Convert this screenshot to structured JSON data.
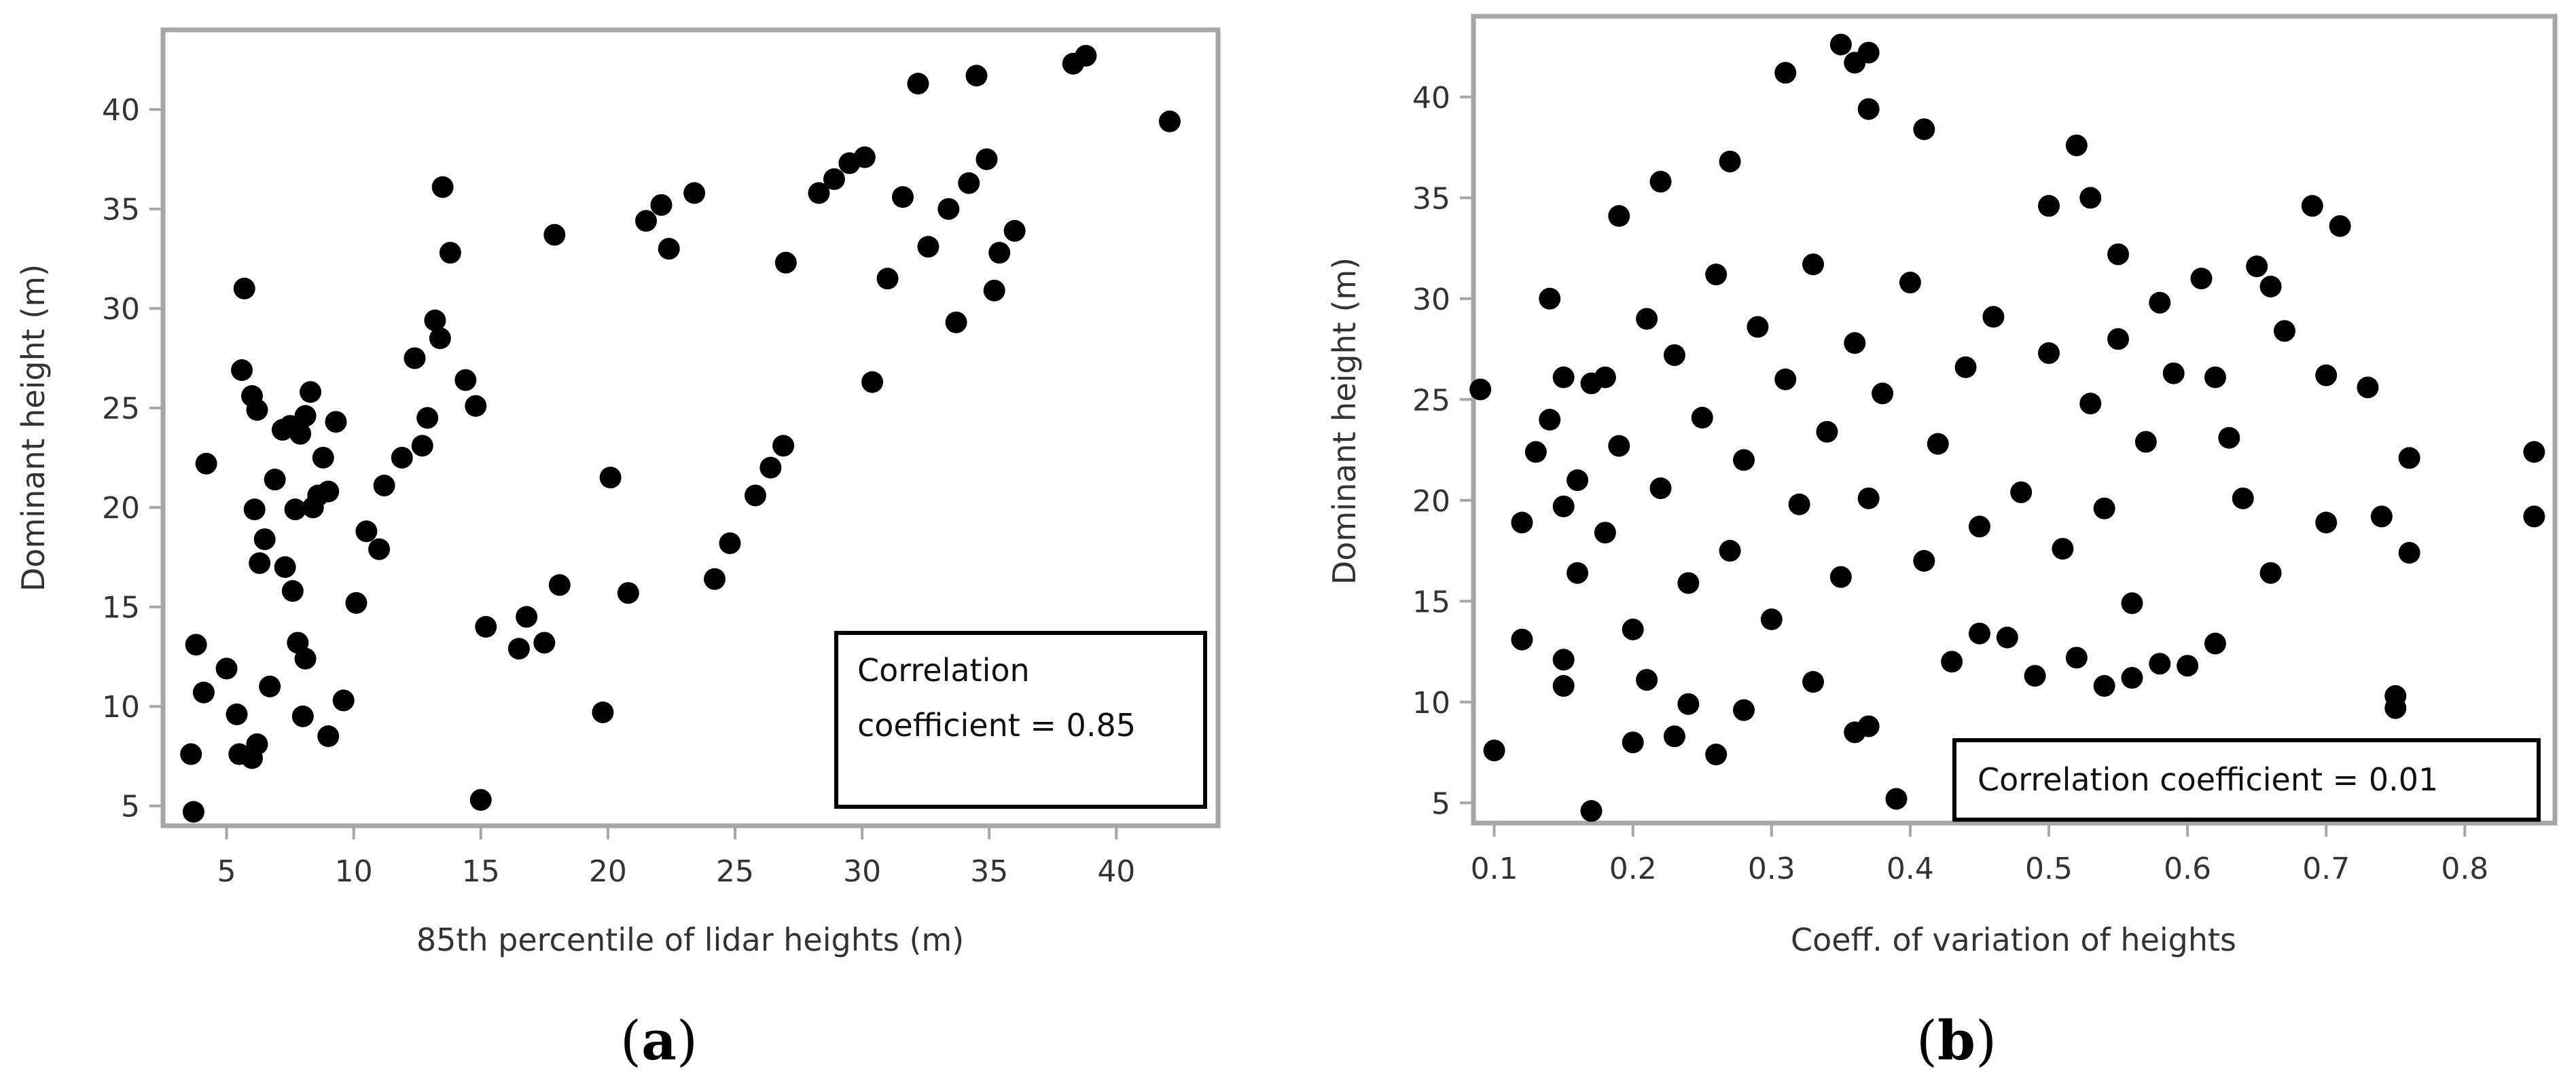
{
  "colors": {
    "frame": "#a6a6a6",
    "point": "#000000",
    "text": "#333333",
    "box_border": "#000000"
  },
  "chart_data": [
    {
      "type": "scatter",
      "panel_label": "(a)",
      "panel_letter": "a",
      "xlabel": "85th percentile of lidar heights (m)",
      "ylabel": "Dominant height (m)",
      "xlim": [
        2.5,
        44
      ],
      "ylim": [
        4,
        44
      ],
      "x_ticks": [
        5,
        10,
        15,
        20,
        25,
        30,
        35,
        40
      ],
      "y_ticks": [
        5,
        10,
        15,
        20,
        25,
        30,
        35,
        40
      ],
      "annotation_lines": [
        "Correlation",
        "coefficient = 0.85"
      ],
      "correlation": 0.85,
      "legend_position": "bottom-right",
      "points": [
        [
          3.7,
          4.7
        ],
        [
          3.6,
          7.6
        ],
        [
          3.8,
          13.1
        ],
        [
          4.1,
          10.7
        ],
        [
          4.2,
          22.2
        ],
        [
          5.0,
          11.9
        ],
        [
          5.4,
          9.6
        ],
        [
          5.5,
          7.6
        ],
        [
          5.7,
          31.0
        ],
        [
          5.6,
          26.9
        ],
        [
          6.0,
          25.6
        ],
        [
          6.2,
          24.9
        ],
        [
          6.1,
          19.9
        ],
        [
          6.3,
          17.2
        ],
        [
          6.5,
          18.4
        ],
        [
          6.9,
          21.4
        ],
        [
          7.2,
          23.9
        ],
        [
          7.5,
          24.1
        ],
        [
          7.9,
          23.7
        ],
        [
          8.1,
          24.6
        ],
        [
          8.3,
          25.8
        ],
        [
          8.8,
          22.5
        ],
        [
          9.3,
          24.3
        ],
        [
          9.0,
          20.8
        ],
        [
          8.6,
          20.6
        ],
        [
          8.4,
          20.0
        ],
        [
          7.7,
          19.9
        ],
        [
          7.3,
          17.0
        ],
        [
          7.6,
          15.8
        ],
        [
          7.8,
          13.2
        ],
        [
          8.1,
          12.4
        ],
        [
          8.0,
          9.5
        ],
        [
          6.7,
          11.0
        ],
        [
          6.2,
          8.1
        ],
        [
          6.0,
          7.4
        ],
        [
          9.0,
          8.5
        ],
        [
          9.6,
          10.3
        ],
        [
          10.1,
          15.2
        ],
        [
          10.5,
          18.8
        ],
        [
          11.0,
          17.9
        ],
        [
          11.2,
          21.1
        ],
        [
          11.9,
          22.5
        ],
        [
          12.4,
          27.5
        ],
        [
          12.9,
          24.5
        ],
        [
          13.5,
          36.1
        ],
        [
          13.8,
          32.8
        ],
        [
          13.2,
          29.4
        ],
        [
          13.4,
          28.5
        ],
        [
          12.7,
          23.1
        ],
        [
          14.4,
          26.4
        ],
        [
          14.8,
          25.1
        ],
        [
          15.0,
          5.3
        ],
        [
          15.2,
          14.0
        ],
        [
          16.5,
          12.9
        ],
        [
          16.8,
          14.5
        ],
        [
          17.5,
          13.2
        ],
        [
          18.1,
          16.1
        ],
        [
          17.9,
          33.7
        ],
        [
          19.8,
          9.7
        ],
        [
          20.8,
          15.7
        ],
        [
          20.1,
          21.5
        ],
        [
          21.5,
          34.4
        ],
        [
          22.1,
          35.2
        ],
        [
          22.4,
          33.0
        ],
        [
          23.4,
          35.8
        ],
        [
          24.2,
          16.4
        ],
        [
          24.8,
          18.2
        ],
        [
          25.8,
          20.6
        ],
        [
          26.4,
          22.0
        ],
        [
          26.9,
          23.1
        ],
        [
          27.0,
          32.3
        ],
        [
          28.3,
          35.8
        ],
        [
          28.9,
          36.5
        ],
        [
          29.5,
          37.3
        ],
        [
          30.1,
          37.6
        ],
        [
          30.4,
          26.3
        ],
        [
          31.0,
          31.5
        ],
        [
          31.6,
          35.6
        ],
        [
          32.2,
          41.3
        ],
        [
          32.6,
          33.1
        ],
        [
          33.4,
          35.0
        ],
        [
          33.7,
          29.3
        ],
        [
          34.2,
          36.3
        ],
        [
          34.5,
          41.7
        ],
        [
          34.9,
          37.5
        ],
        [
          35.2,
          30.9
        ],
        [
          35.4,
          32.8
        ],
        [
          36.0,
          33.9
        ],
        [
          38.3,
          42.3
        ],
        [
          38.8,
          42.7
        ],
        [
          42.1,
          39.4
        ]
      ]
    },
    {
      "type": "scatter",
      "panel_label": "(b)",
      "panel_letter": "b",
      "xlabel": "Coeff. of variation of heights",
      "ylabel": "Dominant height (m)",
      "xlim": [
        0.085,
        0.865
      ],
      "ylim": [
        4,
        44
      ],
      "x_ticks": [
        0.1,
        0.2,
        0.3,
        0.4,
        0.5,
        0.6,
        0.7,
        0.8
      ],
      "y_ticks": [
        5,
        10,
        15,
        20,
        25,
        30,
        35,
        40
      ],
      "annotation_lines": [
        "Correlation coefficient = 0.01"
      ],
      "correlation": 0.01,
      "legend_position": "bottom-right",
      "points": [
        [
          0.09,
          25.5
        ],
        [
          0.1,
          7.6
        ],
        [
          0.12,
          18.9
        ],
        [
          0.12,
          13.1
        ],
        [
          0.13,
          22.4
        ],
        [
          0.14,
          30.0
        ],
        [
          0.15,
          26.1
        ],
        [
          0.15,
          10.8
        ],
        [
          0.15,
          12.1
        ],
        [
          0.16,
          16.4
        ],
        [
          0.17,
          4.6
        ],
        [
          0.18,
          26.1
        ],
        [
          0.19,
          34.1
        ],
        [
          0.2,
          8.0
        ],
        [
          0.21,
          11.1
        ],
        [
          0.22,
          35.8
        ],
        [
          0.23,
          8.3
        ],
        [
          0.24,
          9.9
        ],
        [
          0.26,
          7.4
        ],
        [
          0.27,
          36.8
        ],
        [
          0.28,
          9.6
        ],
        [
          0.31,
          41.2
        ],
        [
          0.33,
          11.0
        ],
        [
          0.35,
          42.6
        ],
        [
          0.36,
          41.7
        ],
        [
          0.37,
          42.2
        ],
        [
          0.37,
          39.4
        ],
        [
          0.37,
          8.8
        ],
        [
          0.36,
          8.5
        ],
        [
          0.39,
          5.2
        ],
        [
          0.41,
          38.4
        ],
        [
          0.43,
          12.0
        ],
        [
          0.45,
          13.4
        ],
        [
          0.47,
          13.2
        ],
        [
          0.49,
          11.3
        ],
        [
          0.5,
          34.6
        ],
        [
          0.52,
          37.6
        ],
        [
          0.52,
          12.2
        ],
        [
          0.53,
          35.0
        ],
        [
          0.54,
          10.8
        ],
        [
          0.55,
          32.2
        ],
        [
          0.56,
          11.2
        ],
        [
          0.58,
          11.9
        ],
        [
          0.58,
          29.8
        ],
        [
          0.6,
          11.8
        ],
        [
          0.61,
          31.0
        ],
        [
          0.62,
          12.9
        ],
        [
          0.65,
          31.6
        ],
        [
          0.66,
          30.6
        ],
        [
          0.66,
          16.4
        ],
        [
          0.67,
          28.4
        ],
        [
          0.69,
          34.6
        ],
        [
          0.7,
          26.2
        ],
        [
          0.7,
          18.9
        ],
        [
          0.71,
          33.6
        ],
        [
          0.73,
          25.6
        ],
        [
          0.74,
          19.2
        ],
        [
          0.75,
          9.7
        ],
        [
          0.75,
          10.3
        ],
        [
          0.76,
          17.4
        ],
        [
          0.76,
          22.1
        ],
        [
          0.85,
          22.4
        ],
        [
          0.85,
          19.2
        ],
        [
          0.64,
          20.1
        ],
        [
          0.63,
          23.1
        ],
        [
          0.62,
          26.1
        ],
        [
          0.59,
          26.3
        ],
        [
          0.57,
          22.9
        ],
        [
          0.56,
          14.9
        ],
        [
          0.55,
          28.0
        ],
        [
          0.54,
          19.6
        ],
        [
          0.53,
          24.8
        ],
        [
          0.51,
          17.6
        ],
        [
          0.5,
          27.3
        ],
        [
          0.48,
          20.4
        ],
        [
          0.46,
          29.1
        ],
        [
          0.45,
          18.7
        ],
        [
          0.44,
          26.6
        ],
        [
          0.42,
          22.8
        ],
        [
          0.41,
          17.0
        ],
        [
          0.4,
          30.8
        ],
        [
          0.38,
          25.3
        ],
        [
          0.37,
          20.1
        ],
        [
          0.36,
          27.8
        ],
        [
          0.35,
          16.2
        ],
        [
          0.34,
          23.4
        ],
        [
          0.33,
          31.7
        ],
        [
          0.32,
          19.8
        ],
        [
          0.31,
          26.0
        ],
        [
          0.3,
          14.1
        ],
        [
          0.29,
          28.6
        ],
        [
          0.28,
          22.0
        ],
        [
          0.27,
          17.5
        ],
        [
          0.26,
          31.2
        ],
        [
          0.25,
          24.1
        ],
        [
          0.24,
          15.9
        ],
        [
          0.23,
          27.2
        ],
        [
          0.22,
          20.6
        ],
        [
          0.21,
          29.0
        ],
        [
          0.2,
          13.6
        ],
        [
          0.19,
          22.7
        ],
        [
          0.18,
          18.4
        ],
        [
          0.17,
          25.8
        ],
        [
          0.16,
          21.0
        ],
        [
          0.15,
          19.7
        ],
        [
          0.14,
          24.0
        ]
      ]
    }
  ]
}
